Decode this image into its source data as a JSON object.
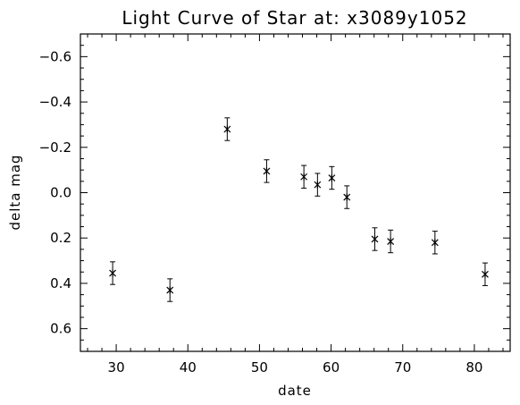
{
  "chart_data": {
    "type": "scatter",
    "title": "Light Curve of Star at: x3089y1052",
    "xlabel": "date",
    "ylabel": "delta mag",
    "xlim": [
      25,
      85
    ],
    "ylim": [
      -0.7,
      0.7
    ],
    "y_inverted": true,
    "grid": false,
    "marker": "asterisk",
    "x_ticks": [
      30,
      40,
      50,
      60,
      70,
      80
    ],
    "y_ticks": [
      -0.6,
      -0.4,
      -0.2,
      0.0,
      0.2,
      0.4,
      0.6
    ],
    "x_tick_labels": [
      "30",
      "40",
      "50",
      "60",
      "70",
      "80"
    ],
    "y_tick_labels": [
      "−0.6",
      "−0.4",
      "−0.2",
      "0.0",
      "0.2",
      "0.4",
      "0.6"
    ],
    "points": [
      {
        "x": 29.5,
        "y": 0.355,
        "err": 0.05
      },
      {
        "x": 37.5,
        "y": 0.43,
        "err": 0.05
      },
      {
        "x": 45.5,
        "y": -0.28,
        "err": 0.05
      },
      {
        "x": 51.0,
        "y": -0.095,
        "err": 0.05
      },
      {
        "x": 56.2,
        "y": -0.07,
        "err": 0.05
      },
      {
        "x": 58.1,
        "y": -0.035,
        "err": 0.05
      },
      {
        "x": 60.1,
        "y": -0.065,
        "err": 0.05
      },
      {
        "x": 62.2,
        "y": 0.02,
        "err": 0.05
      },
      {
        "x": 66.1,
        "y": 0.205,
        "err": 0.05
      },
      {
        "x": 68.3,
        "y": 0.215,
        "err": 0.05
      },
      {
        "x": 74.5,
        "y": 0.22,
        "err": 0.05
      },
      {
        "x": 81.5,
        "y": 0.36,
        "err": 0.05
      }
    ]
  }
}
